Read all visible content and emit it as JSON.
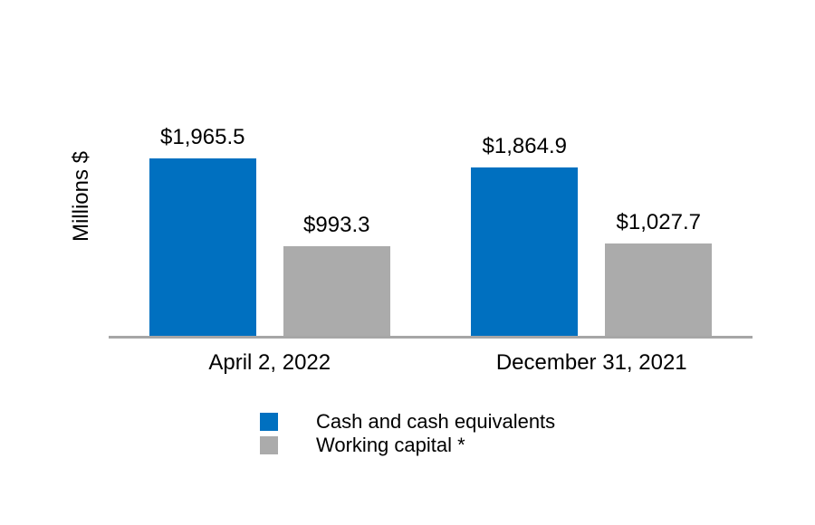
{
  "chart_data": {
    "type": "bar",
    "title": "",
    "ylabel": "Millions $",
    "xlabel": "",
    "categories": [
      "April 2, 2022",
      "December 31, 2021"
    ],
    "series": [
      {
        "name": "Cash and cash equivalents",
        "color": "#0070C0",
        "values": [
          1965.5,
          1864.9
        ],
        "labels": [
          "$1,965.5",
          "$1,864.9"
        ]
      },
      {
        "name": "Working capital *",
        "color": "#ABABAB",
        "values": [
          993.3,
          1027.7
        ],
        "labels": [
          "$993.3",
          "$1,027.7"
        ]
      }
    ],
    "ylim": [
      0,
      2100
    ],
    "axis_color": "#A6A6A6",
    "grid": false,
    "legend_position": "bottom",
    "data_labels": true
  }
}
